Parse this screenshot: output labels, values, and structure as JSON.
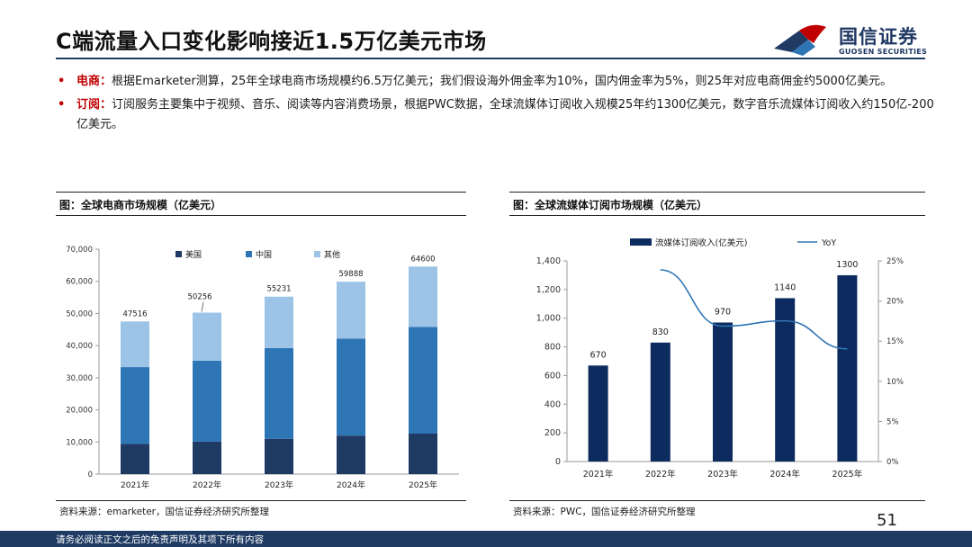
{
  "header": {
    "title": "C端流量入口变化影响接近1.5万亿美元市场",
    "logo_cn": "国信证券",
    "logo_en": "GUOSEN SECURITIES",
    "brand_color": "#1f3a63",
    "accent_color": "#c00000"
  },
  "bullets": [
    {
      "label": "电商：",
      "text": "根据Emarketer测算，25年全球电商市场规模约6.5万亿美元；我们假设海外佣金率为10%，国内佣金率为5%，则25年对应电商佣金约5000亿美元。"
    },
    {
      "label": "订阅：",
      "text": "订阅服务主要集中于视频、音乐、阅读等内容消费场景，根据PWC数据，全球流媒体订阅收入规模25年约1300亿美元，数字音乐流媒体订阅收入约150亿-200亿美元。"
    }
  ],
  "left_panel": {
    "title": "图：全球电商市场规模（亿美元）",
    "source": "资料来源：emarketer，国信证券经济研究所整理"
  },
  "right_panel": {
    "title": "图：全球流媒体订阅市场规模（亿美元）",
    "source": "资料来源：PWC，国信证券经济研究所整理"
  },
  "page_number": "51",
  "footer": {
    "text": "请务必阅读正文之后的免责声明及其项下所有内容"
  },
  "chart_data": [
    {
      "type": "bar",
      "stacked": true,
      "categories": [
        "2021年",
        "2022年",
        "2023年",
        "2024年",
        "2025年"
      ],
      "series": [
        {
          "name": "美国",
          "values": [
            9400,
            10100,
            11000,
            12000,
            12600
          ],
          "color": "#1f3a63"
        },
        {
          "name": "中国",
          "values": [
            23900,
            25200,
            28200,
            30200,
            33200
          ],
          "color": "#2e75b6"
        },
        {
          "name": "其他",
          "values": [
            14216,
            14956,
            16031,
            17688,
            18800
          ],
          "color": "#9dc3e6"
        }
      ],
      "totals": [
        47516,
        50256,
        55231,
        59888,
        64600
      ],
      "total_labels": [
        "47516",
        "50256",
        "55231",
        "59888",
        "64600"
      ],
      "ylim": [
        0,
        70000
      ],
      "yticks": [
        0,
        10000,
        20000,
        30000,
        40000,
        50000,
        60000,
        70000
      ],
      "ytick_labels": [
        "0",
        "10,000",
        "20,000",
        "30,000",
        "40,000",
        "50,000",
        "60,000",
        "70,000"
      ],
      "legend": "top",
      "xlabel": "",
      "ylabel": ""
    },
    {
      "type": "bar",
      "categories": [
        "2021年",
        "2022年",
        "2023年",
        "2024年",
        "2025年"
      ],
      "series": [
        {
          "name": "流媒体订阅收入(亿美元)",
          "values": [
            670,
            830,
            970,
            1140,
            1300
          ],
          "color": "#0d2b5e"
        },
        {
          "name": "YoY",
          "type": "line",
          "axis": "right",
          "values": [
            null,
            0.2388,
            0.1687,
            0.1753,
            0.1404
          ],
          "color": "#2e75b6"
        }
      ],
      "value_labels": [
        "670",
        "830",
        "970",
        "1140",
        "1300"
      ],
      "ylim": [
        0,
        1400
      ],
      "yticks": [
        0,
        200,
        400,
        600,
        800,
        1000,
        1200,
        1400
      ],
      "ytick_labels": [
        "0",
        "200",
        "400",
        "600",
        "800",
        "1,000",
        "1,200",
        "1,400"
      ],
      "y2lim": [
        0,
        0.25
      ],
      "y2ticks": [
        0,
        0.05,
        0.1,
        0.15,
        0.2,
        0.25
      ],
      "y2tick_labels": [
        "0%",
        "5%",
        "10%",
        "15%",
        "20%",
        "25%"
      ],
      "legend": "top",
      "xlabel": "",
      "ylabel": ""
    }
  ]
}
